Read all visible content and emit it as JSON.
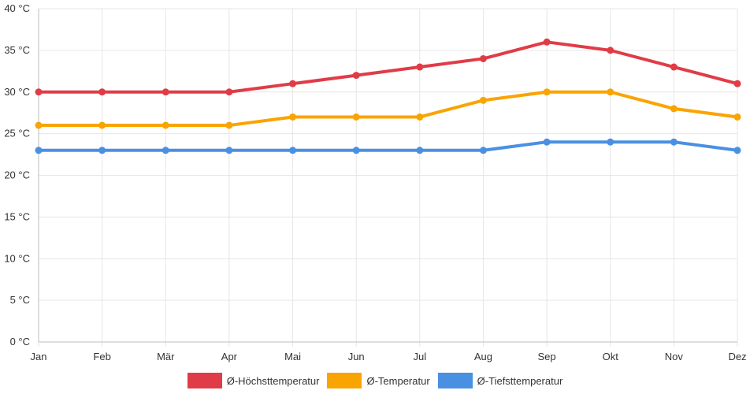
{
  "chart_data": {
    "type": "line",
    "categories": [
      "Jan",
      "Feb",
      "Mär",
      "Apr",
      "Mai",
      "Jun",
      "Jul",
      "Aug",
      "Sep",
      "Okt",
      "Nov",
      "Dez"
    ],
    "ylim": [
      0,
      40
    ],
    "y_ticks": [
      0,
      5,
      10,
      15,
      20,
      25,
      30,
      35,
      40
    ],
    "y_unit": "°C",
    "grid": true,
    "legend_position": "bottom",
    "series": [
      {
        "name": "Ø-Höchsttemperatur",
        "color": "#e03c47",
        "values": [
          30,
          30,
          30,
          30,
          31,
          32,
          33,
          34,
          36,
          35,
          33,
          31
        ]
      },
      {
        "name": "Ø-Temperatur",
        "color": "#f9a400",
        "values": [
          26,
          26,
          26,
          26,
          27,
          27,
          27,
          29,
          30,
          30,
          28,
          27
        ]
      },
      {
        "name": "Ø-Tiefsttemperatur",
        "color": "#4a90e2",
        "values": [
          23,
          23,
          23,
          23,
          23,
          23,
          23,
          23,
          24,
          24,
          24,
          23
        ]
      }
    ]
  }
}
